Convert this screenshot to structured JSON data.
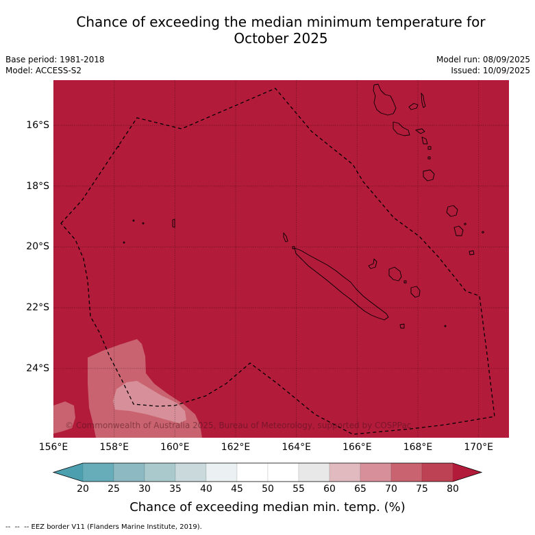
{
  "title": {
    "line1": "Chance of exceeding the median minimum temperature for",
    "line2": "October 2025"
  },
  "info": {
    "base_period": "Base period: 1981-2018",
    "model": "Model: ACCESS-S2",
    "model_run": "Model run: 08/09/2025",
    "issued": "Issued: 10/09/2025"
  },
  "map": {
    "extent": {
      "lon": [
        156,
        171
      ],
      "lat": [
        -26.28,
        -14.51
      ]
    },
    "lon_ticks": [
      156,
      158,
      160,
      162,
      164,
      166,
      168,
      170
    ],
    "lon_labels": [
      "156°E",
      "158°E",
      "160°E",
      "162°E",
      "164°E",
      "166°E",
      "168°E",
      "170°E"
    ],
    "lat_ticks": [
      -16,
      -18,
      -20,
      -22,
      -24
    ],
    "lat_labels": [
      "16°S",
      "18°S",
      "20°S",
      "22°S",
      "24°S"
    ],
    "watermark": "© Commonwealth of Australia 2025, Bureau of Meteorology, supported by COSPPac"
  },
  "colorbar": {
    "ticks": [
      "20",
      "25",
      "30",
      "35",
      "40",
      "45",
      "50",
      "55",
      "60",
      "65",
      "70",
      "75",
      "80"
    ],
    "colors": [
      "#67adb9",
      "#8cb9c2",
      "#a9c9cd",
      "#c9d9dc",
      "#ebf1f2",
      "#ffffff",
      "#ffffff",
      "#e8e8e8",
      "#e1bac0",
      "#d78f99",
      "#c9636f",
      "#bd4254"
    ],
    "extend_min_color": "#4b9fae",
    "extend_max_color": "#b21b3a",
    "label": "Chance of exceeding median min. temp. (%)"
  },
  "legend": {
    "eez_line": "--  --  -- EEZ border V11 (Flanders Marine Institute, 2019)."
  }
}
